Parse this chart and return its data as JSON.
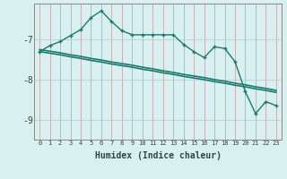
{
  "xlabel": "Humidex (Indice chaleur)",
  "background_color": "#d8f0f0",
  "grid_color_v": "#c8a8a8",
  "grid_color_h": "#b8d0d0",
  "line_color": "#1a7a6e",
  "x_values": [
    0,
    1,
    2,
    3,
    4,
    5,
    6,
    7,
    8,
    9,
    10,
    11,
    12,
    13,
    14,
    15,
    16,
    17,
    18,
    19,
    20,
    21,
    22,
    23
  ],
  "y_curve": [
    -7.3,
    -7.15,
    -7.05,
    -6.9,
    -6.75,
    -6.45,
    -6.28,
    -6.55,
    -6.78,
    -6.88,
    -6.88,
    -6.88,
    -6.88,
    -6.88,
    -7.12,
    -7.3,
    -7.45,
    -7.18,
    -7.22,
    -7.55,
    -8.3,
    -8.85,
    -8.55,
    -8.65
  ],
  "y_trend1": [
    -7.3,
    -7.34,
    -7.38,
    -7.43,
    -7.47,
    -7.52,
    -7.56,
    -7.61,
    -7.65,
    -7.69,
    -7.74,
    -7.78,
    -7.83,
    -7.87,
    -7.92,
    -7.96,
    -8.0,
    -8.05,
    -8.09,
    -8.14,
    -8.18,
    -8.23,
    -8.27,
    -8.32
  ],
  "y_trend2": [
    -7.25,
    -7.29,
    -7.33,
    -7.38,
    -7.42,
    -7.47,
    -7.51,
    -7.56,
    -7.6,
    -7.64,
    -7.69,
    -7.73,
    -7.78,
    -7.82,
    -7.87,
    -7.91,
    -7.95,
    -8.0,
    -8.04,
    -8.09,
    -8.13,
    -8.18,
    -8.22,
    -8.27
  ],
  "ylim": [
    -9.5,
    -6.1
  ],
  "yticks": [
    -9,
    -8,
    -7
  ],
  "xlim": [
    -0.5,
    23.5
  ]
}
